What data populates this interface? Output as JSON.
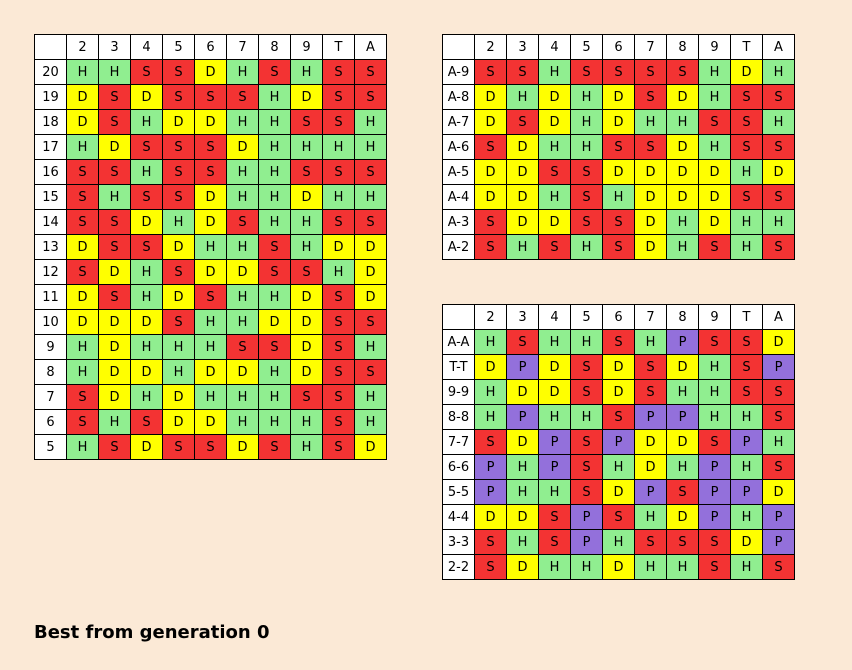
{
  "columns": [
    "2",
    "3",
    "4",
    "5",
    "6",
    "7",
    "8",
    "9",
    "T",
    "A"
  ],
  "hard": {
    "rows": [
      {
        "label": "20",
        "cells": [
          "H",
          "H",
          "S",
          "S",
          "D",
          "H",
          "S",
          "H",
          "S",
          "S"
        ]
      },
      {
        "label": "19",
        "cells": [
          "D",
          "S",
          "D",
          "S",
          "S",
          "S",
          "H",
          "D",
          "S",
          "S"
        ]
      },
      {
        "label": "18",
        "cells": [
          "D",
          "S",
          "H",
          "D",
          "D",
          "H",
          "H",
          "S",
          "S",
          "H"
        ]
      },
      {
        "label": "17",
        "cells": [
          "H",
          "D",
          "S",
          "S",
          "S",
          "D",
          "H",
          "H",
          "H",
          "H"
        ]
      },
      {
        "label": "16",
        "cells": [
          "S",
          "S",
          "H",
          "S",
          "S",
          "H",
          "H",
          "S",
          "S",
          "S"
        ]
      },
      {
        "label": "15",
        "cells": [
          "S",
          "H",
          "S",
          "S",
          "D",
          "H",
          "H",
          "D",
          "H",
          "H"
        ]
      },
      {
        "label": "14",
        "cells": [
          "S",
          "S",
          "D",
          "H",
          "D",
          "S",
          "H",
          "H",
          "S",
          "S"
        ]
      },
      {
        "label": "13",
        "cells": [
          "D",
          "S",
          "S",
          "D",
          "H",
          "H",
          "S",
          "H",
          "D",
          "D"
        ]
      },
      {
        "label": "12",
        "cells": [
          "S",
          "D",
          "H",
          "S",
          "D",
          "D",
          "S",
          "S",
          "H",
          "D"
        ]
      },
      {
        "label": "11",
        "cells": [
          "D",
          "S",
          "H",
          "D",
          "S",
          "H",
          "H",
          "D",
          "S",
          "D"
        ]
      },
      {
        "label": "10",
        "cells": [
          "D",
          "D",
          "D",
          "S",
          "H",
          "H",
          "D",
          "D",
          "S",
          "S"
        ]
      },
      {
        "label": "9",
        "cells": [
          "H",
          "D",
          "H",
          "H",
          "H",
          "S",
          "S",
          "D",
          "S",
          "H"
        ]
      },
      {
        "label": "8",
        "cells": [
          "H",
          "D",
          "D",
          "H",
          "D",
          "D",
          "H",
          "D",
          "S",
          "S"
        ]
      },
      {
        "label": "7",
        "cells": [
          "S",
          "D",
          "H",
          "D",
          "H",
          "H",
          "H",
          "S",
          "S",
          "H"
        ]
      },
      {
        "label": "6",
        "cells": [
          "S",
          "H",
          "S",
          "D",
          "D",
          "H",
          "H",
          "H",
          "S",
          "H"
        ]
      },
      {
        "label": "5",
        "cells": [
          "H",
          "S",
          "D",
          "S",
          "S",
          "D",
          "S",
          "H",
          "S",
          "D"
        ]
      }
    ]
  },
  "soft": {
    "rows": [
      {
        "label": "A-9",
        "cells": [
          "S",
          "S",
          "H",
          "S",
          "S",
          "S",
          "S",
          "H",
          "D",
          "H"
        ]
      },
      {
        "label": "A-8",
        "cells": [
          "D",
          "H",
          "D",
          "H",
          "D",
          "S",
          "D",
          "H",
          "S",
          "S"
        ]
      },
      {
        "label": "A-7",
        "cells": [
          "D",
          "S",
          "D",
          "H",
          "D",
          "H",
          "H",
          "S",
          "S",
          "H"
        ]
      },
      {
        "label": "A-6",
        "cells": [
          "S",
          "D",
          "H",
          "H",
          "S",
          "S",
          "D",
          "H",
          "S",
          "S"
        ]
      },
      {
        "label": "A-5",
        "cells": [
          "D",
          "D",
          "S",
          "S",
          "D",
          "D",
          "D",
          "D",
          "H",
          "D"
        ]
      },
      {
        "label": "A-4",
        "cells": [
          "D",
          "D",
          "H",
          "S",
          "H",
          "D",
          "D",
          "D",
          "S",
          "S"
        ]
      },
      {
        "label": "A-3",
        "cells": [
          "S",
          "D",
          "D",
          "S",
          "S",
          "D",
          "H",
          "D",
          "H",
          "H"
        ]
      },
      {
        "label": "A-2",
        "cells": [
          "S",
          "H",
          "S",
          "H",
          "S",
          "D",
          "H",
          "S",
          "H",
          "S"
        ]
      }
    ]
  },
  "pairs": {
    "rows": [
      {
        "label": "A-A",
        "cells": [
          "H",
          "S",
          "H",
          "H",
          "S",
          "H",
          "P",
          "S",
          "S",
          "D"
        ]
      },
      {
        "label": "T-T",
        "cells": [
          "D",
          "P",
          "D",
          "S",
          "D",
          "S",
          "D",
          "H",
          "S",
          "P"
        ]
      },
      {
        "label": "9-9",
        "cells": [
          "H",
          "D",
          "D",
          "S",
          "D",
          "S",
          "H",
          "H",
          "S",
          "S"
        ]
      },
      {
        "label": "8-8",
        "cells": [
          "H",
          "P",
          "H",
          "H",
          "S",
          "P",
          "P",
          "H",
          "H",
          "S"
        ]
      },
      {
        "label": "7-7",
        "cells": [
          "S",
          "D",
          "P",
          "S",
          "P",
          "D",
          "D",
          "S",
          "P",
          "H"
        ]
      },
      {
        "label": "6-6",
        "cells": [
          "P",
          "H",
          "P",
          "S",
          "H",
          "D",
          "H",
          "P",
          "H",
          "S"
        ]
      },
      {
        "label": "5-5",
        "cells": [
          "P",
          "H",
          "H",
          "S",
          "D",
          "P",
          "S",
          "P",
          "P",
          "D"
        ]
      },
      {
        "label": "4-4",
        "cells": [
          "D",
          "D",
          "S",
          "P",
          "S",
          "H",
          "D",
          "P",
          "H",
          "P"
        ]
      },
      {
        "label": "3-3",
        "cells": [
          "S",
          "H",
          "S",
          "P",
          "H",
          "S",
          "S",
          "S",
          "D",
          "P"
        ]
      },
      {
        "label": "2-2",
        "cells": [
          "S",
          "D",
          "H",
          "H",
          "D",
          "H",
          "H",
          "S",
          "H",
          "S"
        ]
      }
    ]
  },
  "colors": {
    "H": "#90ee90",
    "S": "#f33333",
    "D": "#ffff00",
    "P": "#9370db",
    "background": "#fbe9d6"
  },
  "footer": {
    "title": "Best from generation 0"
  }
}
